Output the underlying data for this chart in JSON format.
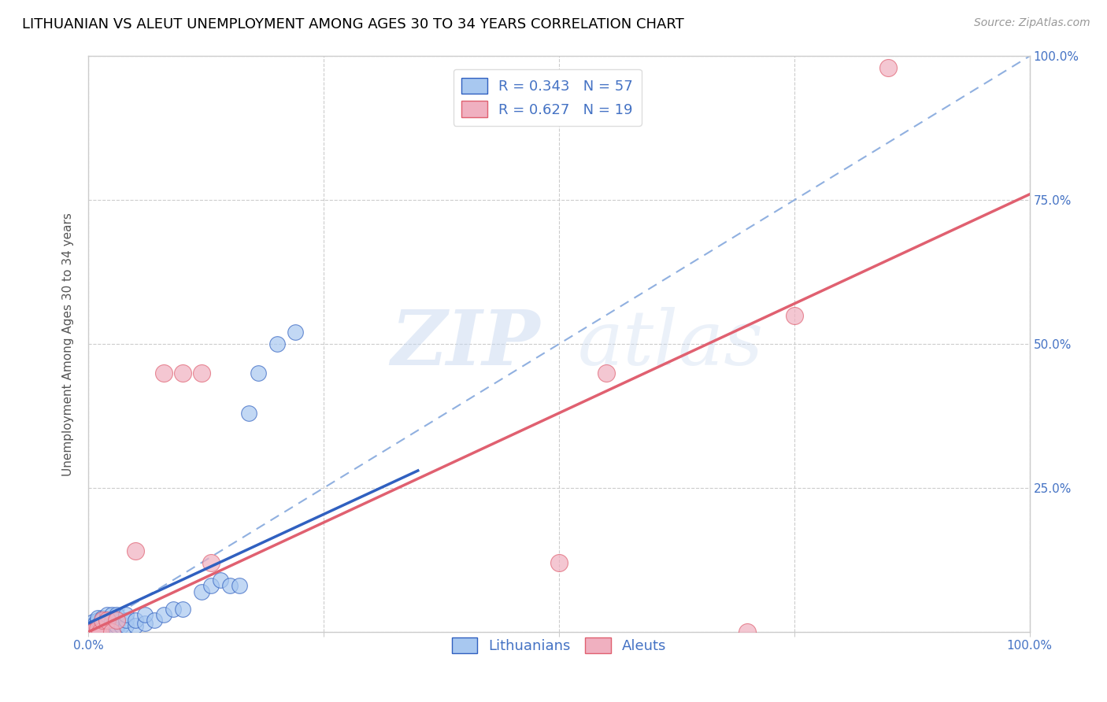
{
  "title": "LITHUANIAN VS ALEUT UNEMPLOYMENT AMONG AGES 30 TO 34 YEARS CORRELATION CHART",
  "source": "Source: ZipAtlas.com",
  "ylabel": "Unemployment Among Ages 30 to 34 years",
  "xlim": [
    0,
    1.0
  ],
  "ylim": [
    0,
    1.0
  ],
  "xticks": [
    0.0,
    0.25,
    0.5,
    0.75,
    1.0
  ],
  "xticklabels": [
    "0.0%",
    "",
    "",
    "",
    "100.0%"
  ],
  "yticks": [
    0.0,
    0.25,
    0.5,
    0.75,
    1.0
  ],
  "yticklabels_right": [
    "",
    "25.0%",
    "50.0%",
    "75.0%",
    "100.0%"
  ],
  "legend_R_blue": "R = 0.343",
  "legend_N_blue": "N = 57",
  "legend_R_pink": "R = 0.627",
  "legend_N_pink": "N = 19",
  "watermark_zip": "ZIP",
  "watermark_atlas": "atlas",
  "blue_scatter_x": [
    0.005,
    0.005,
    0.005,
    0.005,
    0.005,
    0.007,
    0.007,
    0.007,
    0.007,
    0.01,
    0.01,
    0.01,
    0.01,
    0.01,
    0.012,
    0.012,
    0.012,
    0.015,
    0.015,
    0.015,
    0.015,
    0.015,
    0.02,
    0.02,
    0.02,
    0.02,
    0.02,
    0.02,
    0.025,
    0.025,
    0.025,
    0.025,
    0.03,
    0.03,
    0.03,
    0.03,
    0.035,
    0.04,
    0.04,
    0.04,
    0.05,
    0.05,
    0.06,
    0.06,
    0.07,
    0.08,
    0.09,
    0.1,
    0.12,
    0.13,
    0.14,
    0.15,
    0.16,
    0.17,
    0.18,
    0.2,
    0.22
  ],
  "blue_scatter_y": [
    0.0,
    0.005,
    0.008,
    0.012,
    0.018,
    0.0,
    0.005,
    0.01,
    0.015,
    0.0,
    0.005,
    0.01,
    0.02,
    0.025,
    0.0,
    0.008,
    0.015,
    0.0,
    0.005,
    0.01,
    0.02,
    0.025,
    0.0,
    0.005,
    0.01,
    0.015,
    0.02,
    0.03,
    0.0,
    0.01,
    0.02,
    0.03,
    0.005,
    0.01,
    0.02,
    0.03,
    0.01,
    0.01,
    0.02,
    0.03,
    0.01,
    0.02,
    0.015,
    0.03,
    0.02,
    0.03,
    0.04,
    0.04,
    0.07,
    0.08,
    0.09,
    0.08,
    0.08,
    0.38,
    0.45,
    0.5,
    0.52
  ],
  "pink_scatter_x": [
    0.0,
    0.005,
    0.01,
    0.01,
    0.012,
    0.015,
    0.02,
    0.025,
    0.03,
    0.05,
    0.08,
    0.1,
    0.12,
    0.13,
    0.5,
    0.55,
    0.7,
    0.75,
    0.85
  ],
  "pink_scatter_y": [
    0.0,
    0.0,
    0.0,
    0.005,
    0.0,
    0.02,
    0.02,
    0.0,
    0.02,
    0.14,
    0.45,
    0.45,
    0.45,
    0.12,
    0.12,
    0.45,
    0.0,
    0.55,
    0.98
  ],
  "blue_line_x": [
    0.0,
    0.35
  ],
  "blue_line_y": [
    0.015,
    0.28
  ],
  "pink_line_x": [
    0.0,
    1.0
  ],
  "pink_line_y": [
    0.0,
    0.76
  ],
  "dash_line_x": [
    0.0,
    1.0
  ],
  "dash_line_y": [
    0.0,
    1.0
  ],
  "blue_color": "#a8c8f0",
  "pink_color": "#f0b0c0",
  "blue_line_color": "#3060c0",
  "pink_line_color": "#e06070",
  "dash_line_color": "#90b0e0",
  "grid_color": "#cccccc",
  "background_color": "#ffffff",
  "title_fontsize": 13,
  "axis_label_fontsize": 11,
  "tick_fontsize": 11,
  "legend_fontsize": 13
}
